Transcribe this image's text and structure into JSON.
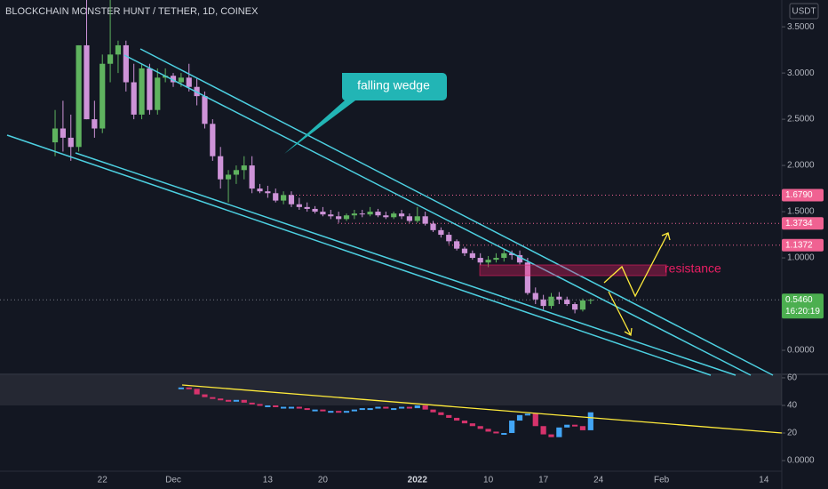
{
  "chart_data": {
    "type": "candlestick",
    "title": "BLOCKCHAIN MONSTER HUNT / TETHER, 1D, COINEX",
    "currency": "USDT",
    "categories": [
      null,
      null,
      null,
      null,
      null,
      null,
      "22",
      null,
      null,
      null,
      null,
      null,
      null,
      null,
      null,
      "Dec",
      null,
      null,
      null,
      null,
      null,
      null,
      null,
      null,
      null,
      null,
      null,
      "13",
      null,
      null,
      null,
      null,
      null,
      null,
      "20",
      null,
      null,
      null,
      null,
      null,
      null,
      null,
      null,
      null,
      null,
      null,
      "2022",
      null,
      null,
      null,
      null,
      null,
      null,
      null,
      null,
      "10",
      null,
      null,
      null,
      null,
      null,
      null,
      "17",
      null,
      null,
      null,
      null,
      null,
      null,
      "24",
      null,
      null,
      null,
      null,
      null,
      null,
      null,
      "Feb",
      null,
      null,
      null,
      null,
      null,
      null,
      null,
      null,
      null,
      null,
      null,
      null,
      "14",
      null,
      null
    ],
    "open": [
      2.25,
      2.4,
      2.3,
      2.2,
      3.3,
      2.5,
      2.4,
      3.1,
      3.2,
      3.3,
      2.9,
      2.55,
      3.05,
      2.6,
      2.95,
      2.97,
      2.9,
      2.95,
      2.85,
      2.75,
      2.45,
      2.1,
      1.85,
      1.9,
      1.95,
      2.0,
      1.75,
      1.72,
      1.7,
      1.62,
      1.68,
      1.58,
      1.55,
      1.53,
      1.5,
      1.47,
      1.45,
      1.42,
      1.46,
      1.48,
      1.47,
      1.5,
      1.46,
      1.44,
      1.48,
      1.45,
      1.4,
      1.45,
      1.37,
      1.3,
      1.25,
      1.18,
      1.1,
      1.05,
      1.0,
      0.95,
      0.98,
      1.0,
      1.05,
      1.03,
      0.95,
      0.62,
      0.55,
      0.48,
      0.58,
      0.55,
      0.5,
      0.44,
      0.54,
      null,
      null,
      null,
      null,
      null,
      null,
      null,
      null,
      null,
      null,
      null,
      null,
      null,
      null,
      null,
      null,
      null,
      null,
      null,
      null,
      null,
      null,
      null,
      null
    ],
    "high": [
      2.6,
      2.7,
      2.55,
      3.3,
      3.8,
      2.7,
      3.2,
      3.8,
      3.35,
      3.35,
      3.1,
      3.1,
      3.1,
      3.05,
      3.05,
      3.0,
      3.0,
      3.1,
      2.95,
      2.8,
      2.5,
      2.2,
      1.95,
      2.0,
      2.1,
      2.1,
      1.8,
      1.78,
      1.75,
      1.72,
      1.72,
      1.65,
      1.6,
      1.56,
      1.55,
      1.52,
      1.5,
      1.48,
      1.52,
      1.52,
      1.55,
      1.53,
      1.5,
      1.5,
      1.52,
      1.48,
      1.55,
      1.5,
      1.4,
      1.33,
      1.28,
      1.2,
      1.12,
      1.08,
      1.05,
      1.02,
      1.05,
      1.1,
      1.08,
      1.08,
      1.0,
      0.68,
      0.6,
      0.62,
      0.63,
      0.58,
      0.52,
      0.56,
      0.56,
      null,
      null,
      null,
      null,
      null,
      null,
      null,
      null,
      null,
      null,
      null,
      null,
      null,
      null,
      null,
      null,
      null,
      null,
      null,
      null,
      null,
      null,
      null,
      null
    ],
    "low": [
      2.1,
      2.15,
      2.05,
      2.15,
      2.5,
      2.3,
      2.35,
      2.9,
      3.0,
      2.8,
      2.5,
      2.5,
      2.55,
      2.55,
      2.9,
      2.85,
      2.85,
      2.8,
      2.65,
      2.4,
      2.05,
      1.75,
      1.6,
      1.8,
      1.85,
      1.7,
      1.7,
      1.65,
      1.6,
      1.58,
      1.55,
      1.52,
      1.5,
      1.48,
      1.45,
      1.42,
      1.38,
      1.4,
      1.42,
      1.44,
      1.45,
      1.44,
      1.42,
      1.42,
      1.42,
      1.38,
      1.38,
      1.35,
      1.28,
      1.22,
      1.15,
      1.08,
      1.02,
      0.98,
      0.92,
      0.9,
      0.95,
      0.96,
      0.98,
      0.93,
      0.6,
      0.5,
      0.44,
      0.45,
      0.5,
      0.48,
      0.4,
      0.42,
      0.5,
      null,
      null,
      null,
      null,
      null,
      null,
      null,
      null,
      null,
      null,
      null,
      null,
      null,
      null,
      null,
      null,
      null,
      null,
      null,
      null,
      null,
      null,
      null,
      null
    ],
    "close": [
      2.4,
      2.3,
      2.2,
      3.3,
      2.5,
      2.4,
      3.1,
      3.2,
      3.3,
      2.9,
      2.55,
      3.05,
      2.6,
      2.95,
      2.97,
      2.9,
      2.95,
      2.85,
      2.75,
      2.45,
      2.1,
      1.85,
      1.9,
      1.95,
      2.0,
      1.75,
      1.72,
      1.7,
      1.62,
      1.68,
      1.58,
      1.55,
      1.53,
      1.5,
      1.47,
      1.45,
      1.42,
      1.46,
      1.48,
      1.47,
      1.5,
      1.46,
      1.44,
      1.48,
      1.45,
      1.4,
      1.45,
      1.37,
      1.3,
      1.25,
      1.18,
      1.1,
      1.05,
      1.0,
      0.95,
      0.98,
      1.0,
      1.05,
      1.03,
      0.95,
      0.62,
      0.55,
      0.48,
      0.58,
      0.55,
      0.5,
      0.44,
      0.54,
      0.546,
      null,
      null,
      null,
      null,
      null,
      null,
      null,
      null,
      null,
      null,
      null,
      null,
      null,
      null,
      null,
      null,
      null,
      null,
      null,
      null,
      null,
      null,
      null,
      null
    ],
    "up_color": "#5fb35f",
    "down_color": "#ce93d8",
    "ylim": [
      -0.25,
      3.79
    ],
    "yticks": [
      {
        "value": 3.5,
        "label": "3.5000"
      },
      {
        "value": 3,
        "label": "3.0000"
      },
      {
        "value": 2.5,
        "label": "2.5000"
      },
      {
        "value": 2,
        "label": "2.0000"
      },
      {
        "value": 1.5,
        "label": "1.5000"
      },
      {
        "value": 1,
        "label": "1.0000"
      },
      {
        "value": 0,
        "label": "0.0000"
      }
    ],
    "levels": [
      {
        "value": 1.679,
        "label": "1.6790"
      },
      {
        "value": 1.3734,
        "label": "1.3734"
      },
      {
        "value": 1.1372,
        "label": "1.1372"
      }
    ],
    "last_price": {
      "value": 0.546,
      "label": "0.5460"
    },
    "countdown": "16:20:19",
    "callout": "falling wedge",
    "resistance": "resistance",
    "oscillator": {
      "type": "histogram",
      "values": [
        null,
        null,
        null,
        null,
        null,
        null,
        null,
        null,
        null,
        null,
        null,
        null,
        null,
        null,
        null,
        null,
        53,
        52,
        48,
        46,
        45,
        44,
        43,
        44,
        42,
        41,
        40,
        40,
        39,
        39,
        39,
        38,
        37,
        37,
        36,
        36,
        35,
        36,
        37,
        38,
        38,
        39,
        38,
        38,
        39,
        38,
        40,
        37,
        35,
        33,
        31,
        29,
        27,
        25,
        23,
        21,
        20,
        20,
        29,
        33,
        34,
        25,
        19,
        17,
        24,
        26,
        25,
        22,
        35,
        null,
        null,
        null,
        null,
        null,
        null,
        null,
        null,
        null,
        null,
        null,
        null,
        null,
        null,
        null,
        null,
        null,
        null,
        null,
        null,
        null,
        null,
        null,
        null
      ],
      "up_color": "#42a5f5",
      "down_color": "#d6336c",
      "ylim": [
        -7.7,
        61.9
      ],
      "yticks": [
        60,
        40,
        20,
        {
          "value": 0,
          "label": "0.0000"
        }
      ],
      "band": [
        40,
        60
      ]
    }
  }
}
